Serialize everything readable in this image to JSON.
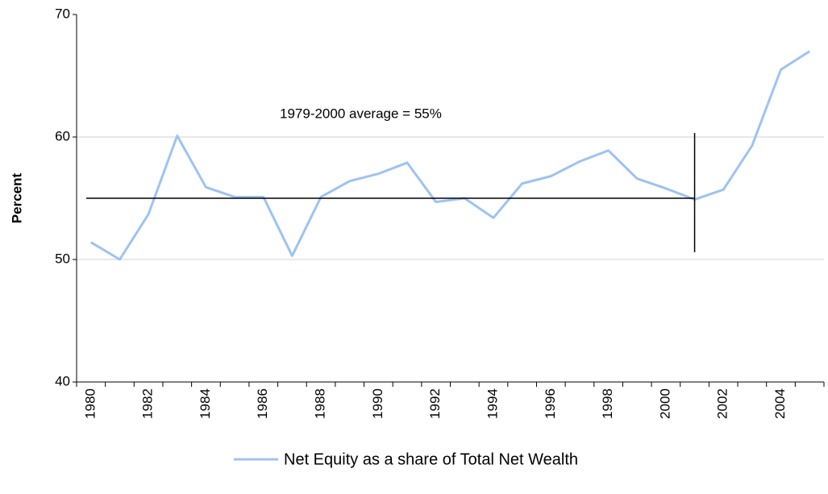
{
  "chart_data": {
    "type": "line",
    "y_label": "Percent",
    "categories": [
      "1980",
      null,
      "1982",
      null,
      "1984",
      null,
      "1986",
      null,
      "1988",
      null,
      "1990",
      null,
      "1992",
      null,
      "1994",
      null,
      "1996",
      null,
      "1998",
      null,
      "2000",
      null,
      "2002",
      null,
      "2004",
      null
    ],
    "series": [
      {
        "name": "Net Equity as a share of Total Net Wealth",
        "color": "#9dc3f2",
        "values": [
          51.4,
          50.0,
          53.7,
          60.1,
          55.9,
          55.1,
          55.1,
          50.3,
          55.1,
          56.4,
          57.0,
          57.9,
          54.7,
          55.0,
          53.4,
          56.2,
          56.8,
          58.0,
          58.9,
          56.6,
          55.8,
          54.9,
          55.7,
          59.3,
          65.5,
          67.0
        ]
      }
    ],
    "ylim": [
      40,
      70
    ],
    "yticks": [
      40,
      50,
      60,
      70
    ],
    "grid": true,
    "annotation": {
      "text": "1979-2000 average = 55%",
      "value": 55
    }
  }
}
